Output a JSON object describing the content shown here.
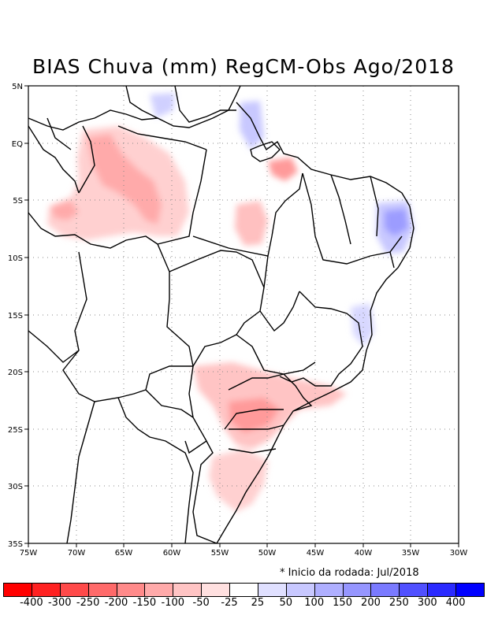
{
  "title": "BIAS Chuva (mm) RegCM-Obs Ago/2018",
  "run_note": "* Inicio da rodada: Jul/2018",
  "axes": {
    "lon_labels": [
      "75W",
      "70W",
      "65W",
      "60W",
      "55W",
      "50W",
      "45W",
      "40W",
      "35W",
      "30W"
    ],
    "lat_labels": [
      "5N",
      "EQ",
      "5S",
      "10S",
      "15S",
      "20S",
      "25S",
      "30S",
      "35S"
    ],
    "lon_range": [
      -75,
      -30
    ],
    "lat_range": [
      -35,
      5
    ],
    "grid": "dotted"
  },
  "legend": {
    "colors": [
      "#ff0000",
      "#ff2222",
      "#ff4a4a",
      "#ff6a6a",
      "#ff8a8a",
      "#ffaaaa",
      "#ffc4c4",
      "#ffe0e0",
      "#ffffff",
      "#e0e0ff",
      "#c8c8ff",
      "#afafff",
      "#9696ff",
      "#7a7aff",
      "#5050ff",
      "#2a2aff",
      "#0000ff"
    ],
    "labels": [
      "-400",
      "-300",
      "-250",
      "-200",
      "-150",
      "-100",
      "-50",
      "-25",
      "25",
      "50",
      "100",
      "150",
      "200",
      "250",
      "300",
      "400"
    ]
  }
}
